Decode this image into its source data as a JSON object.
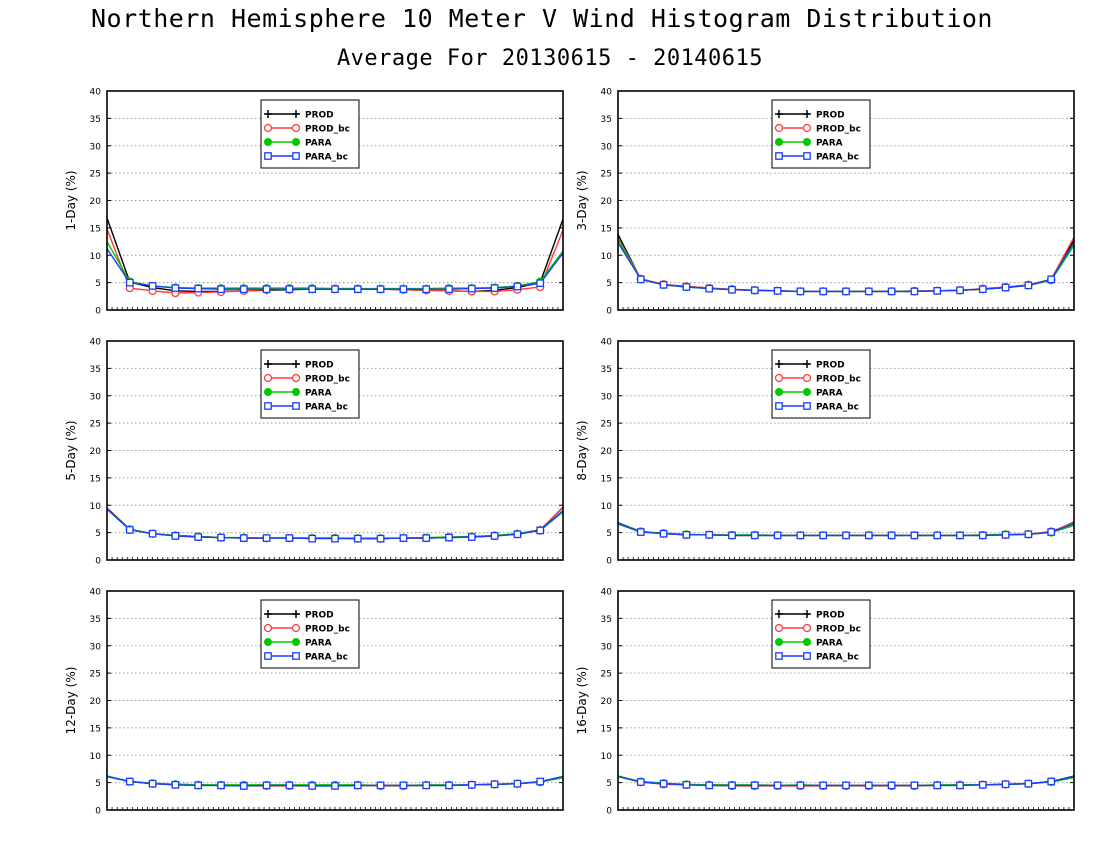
{
  "title": "Northern Hemisphere 10 Meter V Wind Histogram Distribution",
  "subtitle": "Average For 20130615 - 20140615",
  "colors": {
    "PROD": "#000000",
    "PROD_bc": "#ff3b3b",
    "PARA": "#00c800",
    "PARA_bc": "#1a3dff"
  },
  "chart_data": [
    {
      "type": "line",
      "ylabel": "1-Day (%)",
      "ylim": [
        0,
        40
      ],
      "yticks": [
        0,
        5,
        10,
        15,
        20,
        25,
        30,
        35,
        40
      ],
      "grid": true,
      "legend": "top-left",
      "x": [
        1,
        2,
        3,
        4,
        5,
        6,
        7,
        8,
        9,
        10,
        11,
        12,
        13,
        14,
        15,
        16,
        17,
        18,
        19,
        20,
        21
      ],
      "series": [
        {
          "name": "PROD",
          "values": [
            16.8,
            5.1,
            4.1,
            3.5,
            3.4,
            3.4,
            3.5,
            3.6,
            3.7,
            3.8,
            3.8,
            3.8,
            3.8,
            3.7,
            3.6,
            3.5,
            3.4,
            3.6,
            4.1,
            5.0,
            16.6
          ]
        },
        {
          "name": "PROD_bc",
          "values": [
            14.8,
            4.0,
            3.5,
            3.1,
            3.2,
            3.3,
            3.5,
            3.7,
            3.8,
            3.9,
            3.9,
            3.9,
            3.8,
            3.7,
            3.6,
            3.5,
            3.4,
            3.4,
            3.7,
            4.2,
            14.6
          ]
        },
        {
          "name": "PARA",
          "values": [
            12.5,
            5.2,
            4.4,
            4.1,
            4.0,
            4.0,
            4.0,
            4.0,
            4.0,
            4.0,
            3.9,
            3.9,
            3.9,
            3.9,
            3.9,
            4.0,
            4.0,
            4.1,
            4.4,
            5.2,
            10.8
          ]
        },
        {
          "name": "PARA_bc",
          "values": [
            11.2,
            5.0,
            4.4,
            4.0,
            3.9,
            3.8,
            3.8,
            3.8,
            3.8,
            3.8,
            3.8,
            3.8,
            3.8,
            3.8,
            3.8,
            3.8,
            3.9,
            4.0,
            4.3,
            4.9,
            10.4
          ]
        }
      ]
    },
    {
      "type": "line",
      "ylabel": "3-Day (%)",
      "ylim": [
        0,
        40
      ],
      "yticks": [
        0,
        5,
        10,
        15,
        20,
        25,
        30,
        35,
        40
      ],
      "grid": true,
      "legend": "top-left",
      "x": [
        1,
        2,
        3,
        4,
        5,
        6,
        7,
        8,
        9,
        10,
        11,
        12,
        13,
        14,
        15,
        16,
        17,
        18,
        19,
        20,
        21
      ],
      "series": [
        {
          "name": "PROD",
          "values": [
            13.8,
            5.6,
            4.6,
            4.3,
            4.0,
            3.7,
            3.6,
            3.5,
            3.4,
            3.4,
            3.4,
            3.4,
            3.4,
            3.4,
            3.5,
            3.6,
            3.8,
            4.1,
            4.5,
            5.5,
            12.8
          ]
        },
        {
          "name": "PROD_bc",
          "values": [
            13.2,
            5.7,
            4.7,
            4.3,
            4.0,
            3.8,
            3.6,
            3.5,
            3.4,
            3.4,
            3.4,
            3.4,
            3.4,
            3.5,
            3.5,
            3.6,
            3.9,
            4.2,
            4.6,
            5.6,
            13.3
          ]
        },
        {
          "name": "PARA",
          "values": [
            12.9,
            5.6,
            4.6,
            4.2,
            3.9,
            3.7,
            3.6,
            3.5,
            3.4,
            3.4,
            3.4,
            3.4,
            3.4,
            3.4,
            3.5,
            3.6,
            3.8,
            4.1,
            4.5,
            5.4,
            11.8
          ]
        },
        {
          "name": "PARA_bc",
          "values": [
            12.3,
            5.6,
            4.6,
            4.2,
            3.9,
            3.7,
            3.6,
            3.5,
            3.4,
            3.4,
            3.4,
            3.4,
            3.4,
            3.4,
            3.5,
            3.6,
            3.8,
            4.1,
            4.5,
            5.6,
            12.3
          ]
        }
      ]
    },
    {
      "type": "line",
      "ylabel": "5-Day (%)",
      "ylim": [
        0,
        40
      ],
      "yticks": [
        0,
        5,
        10,
        15,
        20,
        25,
        30,
        35,
        40
      ],
      "grid": true,
      "legend": "top-left",
      "x": [
        1,
        2,
        3,
        4,
        5,
        6,
        7,
        8,
        9,
        10,
        11,
        12,
        13,
        14,
        15,
        16,
        17,
        18,
        19,
        20,
        21
      ],
      "series": [
        {
          "name": "PROD",
          "values": [
            9.5,
            5.6,
            4.8,
            4.5,
            4.3,
            4.1,
            4.0,
            4.0,
            4.0,
            4.0,
            4.0,
            3.9,
            3.9,
            4.0,
            4.0,
            4.1,
            4.2,
            4.4,
            4.8,
            5.5,
            9.6
          ]
        },
        {
          "name": "PROD_bc",
          "values": [
            9.4,
            5.5,
            4.8,
            4.4,
            4.2,
            4.1,
            4.0,
            4.0,
            4.0,
            4.0,
            4.0,
            3.9,
            3.9,
            4.0,
            4.0,
            4.1,
            4.2,
            4.4,
            4.7,
            5.4,
            9.7
          ]
        },
        {
          "name": "PARA",
          "values": [
            9.3,
            5.6,
            4.8,
            4.5,
            4.3,
            4.1,
            4.1,
            4.0,
            4.0,
            4.0,
            4.0,
            4.0,
            4.0,
            4.0,
            4.1,
            4.2,
            4.3,
            4.5,
            4.8,
            5.4,
            8.8
          ]
        },
        {
          "name": "PARA_bc",
          "values": [
            9.3,
            5.5,
            4.8,
            4.4,
            4.2,
            4.1,
            4.0,
            4.0,
            4.0,
            3.9,
            3.9,
            3.9,
            3.9,
            4.0,
            4.0,
            4.1,
            4.2,
            4.4,
            4.7,
            5.4,
            9.0
          ]
        }
      ]
    },
    {
      "type": "line",
      "ylabel": "8-Day (%)",
      "ylim": [
        0,
        40
      ],
      "yticks": [
        0,
        5,
        10,
        15,
        20,
        25,
        30,
        35,
        40
      ],
      "grid": true,
      "legend": "top-left",
      "x": [
        1,
        2,
        3,
        4,
        5,
        6,
        7,
        8,
        9,
        10,
        11,
        12,
        13,
        14,
        15,
        16,
        17,
        18,
        19,
        20,
        21
      ],
      "series": [
        {
          "name": "PROD",
          "values": [
            6.8,
            5.2,
            4.8,
            4.6,
            4.6,
            4.5,
            4.5,
            4.5,
            4.5,
            4.5,
            4.5,
            4.5,
            4.5,
            4.5,
            4.5,
            4.5,
            4.5,
            4.6,
            4.7,
            5.1,
            6.9
          ]
        },
        {
          "name": "PROD_bc",
          "values": [
            6.6,
            5.2,
            4.8,
            4.6,
            4.6,
            4.5,
            4.5,
            4.5,
            4.5,
            4.5,
            4.5,
            4.5,
            4.5,
            4.5,
            4.5,
            4.5,
            4.5,
            4.6,
            4.7,
            5.2,
            6.8
          ]
        },
        {
          "name": "PARA",
          "values": [
            6.7,
            5.2,
            4.9,
            4.7,
            4.6,
            4.6,
            4.6,
            4.5,
            4.5,
            4.5,
            4.5,
            4.5,
            4.5,
            4.5,
            4.5,
            4.5,
            4.6,
            4.7,
            4.7,
            5.0,
            6.3
          ]
        },
        {
          "name": "PARA_bc",
          "values": [
            6.6,
            5.1,
            4.8,
            4.6,
            4.6,
            4.5,
            4.5,
            4.5,
            4.5,
            4.5,
            4.5,
            4.5,
            4.5,
            4.5,
            4.5,
            4.5,
            4.5,
            4.6,
            4.7,
            5.1,
            6.6
          ]
        }
      ]
    },
    {
      "type": "line",
      "ylabel": "12-Day (%)",
      "ylim": [
        0,
        40
      ],
      "yticks": [
        0,
        5,
        10,
        15,
        20,
        25,
        30,
        35,
        40
      ],
      "grid": true,
      "legend": "top-left",
      "x": [
        1,
        2,
        3,
        4,
        5,
        6,
        7,
        8,
        9,
        10,
        11,
        12,
        13,
        14,
        15,
        16,
        17,
        18,
        19,
        20,
        21
      ],
      "series": [
        {
          "name": "PROD",
          "values": [
            6.2,
            5.2,
            4.8,
            4.7,
            4.6,
            4.5,
            4.5,
            4.5,
            4.5,
            4.5,
            4.5,
            4.5,
            4.5,
            4.5,
            4.5,
            4.5,
            4.6,
            4.7,
            4.8,
            5.1,
            6.1
          ]
        },
        {
          "name": "PROD_bc",
          "values": [
            6.1,
            5.2,
            4.8,
            4.6,
            4.5,
            4.5,
            4.4,
            4.4,
            4.4,
            4.4,
            4.4,
            4.5,
            4.4,
            4.4,
            4.5,
            4.5,
            4.6,
            4.7,
            4.8,
            5.1,
            6.0
          ]
        },
        {
          "name": "PARA",
          "values": [
            6.2,
            5.2,
            4.9,
            4.7,
            4.6,
            4.6,
            4.6,
            4.6,
            4.6,
            4.6,
            4.6,
            4.6,
            4.5,
            4.5,
            4.6,
            4.6,
            4.6,
            4.7,
            4.8,
            5.1,
            5.9
          ]
        },
        {
          "name": "PARA_bc",
          "values": [
            6.1,
            5.2,
            4.8,
            4.6,
            4.5,
            4.5,
            4.4,
            4.5,
            4.5,
            4.4,
            4.4,
            4.5,
            4.5,
            4.5,
            4.5,
            4.5,
            4.6,
            4.7,
            4.8,
            5.2,
            6.1
          ]
        }
      ]
    },
    {
      "type": "line",
      "ylabel": "16-Day (%)",
      "ylim": [
        0,
        40
      ],
      "yticks": [
        0,
        5,
        10,
        15,
        20,
        25,
        30,
        35,
        40
      ],
      "grid": true,
      "legend": "top-left",
      "x": [
        1,
        2,
        3,
        4,
        5,
        6,
        7,
        8,
        9,
        10,
        11,
        12,
        13,
        14,
        15,
        16,
        17,
        18,
        19,
        20,
        21
      ],
      "series": [
        {
          "name": "PROD",
          "values": [
            6.2,
            5.1,
            4.8,
            4.6,
            4.6,
            4.5,
            4.5,
            4.5,
            4.5,
            4.5,
            4.5,
            4.5,
            4.5,
            4.5,
            4.5,
            4.6,
            4.6,
            4.7,
            4.8,
            5.2,
            6.2
          ]
        },
        {
          "name": "PROD_bc",
          "values": [
            6.1,
            5.1,
            4.7,
            4.6,
            4.5,
            4.4,
            4.4,
            4.4,
            4.4,
            4.4,
            4.4,
            4.4,
            4.4,
            4.4,
            4.5,
            4.5,
            4.6,
            4.7,
            4.8,
            5.2,
            6.1
          ]
        },
        {
          "name": "PARA",
          "values": [
            6.2,
            5.2,
            4.9,
            4.7,
            4.6,
            4.6,
            4.6,
            4.5,
            4.6,
            4.5,
            4.5,
            4.5,
            4.5,
            4.5,
            4.6,
            4.6,
            4.6,
            4.7,
            4.8,
            5.1,
            5.9
          ]
        },
        {
          "name": "PARA_bc",
          "values": [
            6.1,
            5.1,
            4.8,
            4.6,
            4.5,
            4.5,
            4.5,
            4.5,
            4.5,
            4.5,
            4.5,
            4.5,
            4.5,
            4.5,
            4.5,
            4.5,
            4.6,
            4.7,
            4.8,
            5.2,
            6.1
          ]
        }
      ]
    }
  ]
}
